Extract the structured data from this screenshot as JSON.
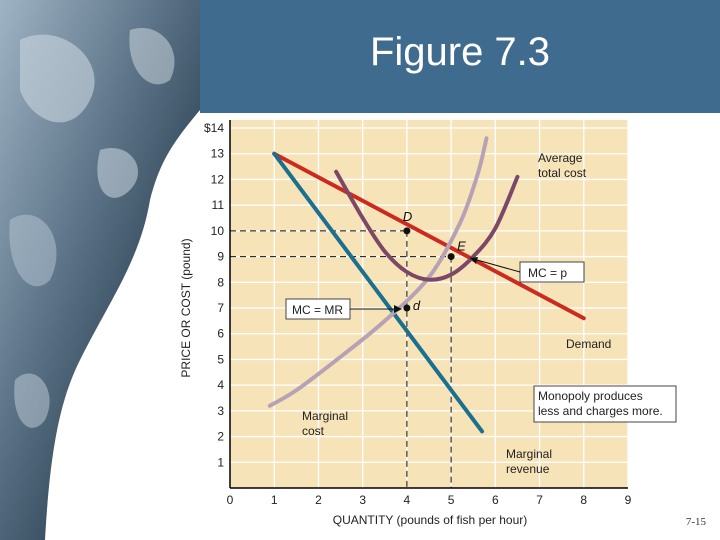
{
  "slide": {
    "title": "Figure 7.3",
    "page_number": "7-15"
  },
  "chart_data": {
    "type": "line",
    "title": "",
    "xlabel": "QUANTITY (pounds of fish per hour)",
    "ylabel": "PRICE OR COST (pound)",
    "xlim": [
      0,
      9
    ],
    "ylim": [
      0,
      14
    ],
    "x_ticks": [
      "0",
      "1",
      "2",
      "3",
      "4",
      "5",
      "6",
      "7",
      "8",
      "9"
    ],
    "y_ticks": [
      "",
      "1",
      "2",
      "3",
      "4",
      "5",
      "6",
      "7",
      "8",
      "9",
      "10",
      "11",
      "12",
      "13",
      "$14"
    ],
    "background": "#f7e3b8",
    "series": [
      {
        "name": "Demand",
        "color": "#cc2a1e",
        "x": [
          1,
          8
        ],
        "y": [
          13,
          6.6
        ]
      },
      {
        "name": "Marginal revenue",
        "color": "#1b6f8f",
        "x": [
          1,
          5.7
        ],
        "y": [
          13,
          2.2
        ]
      },
      {
        "name": "Marginal cost",
        "color": "#b7a2b5",
        "x": [
          0.9,
          1.5,
          2.5,
          3.5,
          4.5,
          5.2,
          5.6,
          5.8
        ],
        "y": [
          3.2,
          3.8,
          5.1,
          6.5,
          8.2,
          10.3,
          12.2,
          13.6
        ]
      },
      {
        "name": "Average total cost",
        "color": "#7d4766",
        "x": [
          2.4,
          3.0,
          3.5,
          4.0,
          4.5,
          5.0,
          5.5,
          6.0,
          6.5
        ],
        "y": [
          12.3,
          10.5,
          9.2,
          8.4,
          8.1,
          8.3,
          9.0,
          10.1,
          12.1
        ]
      }
    ],
    "points": [
      {
        "label": "D",
        "x": 4,
        "y": 10
      },
      {
        "label": "E",
        "x": 5,
        "y": 9
      },
      {
        "label": "d",
        "x": 4,
        "y": 7
      }
    ],
    "annotations": {
      "atc_line1": "Average",
      "atc_line2": "total cost",
      "demand": "Demand",
      "mr_line1": "Marginal",
      "mr_line2": "revenue",
      "mc_line1": "Marginal",
      "mc_line2": "cost",
      "mc_eq_p": "MC = p",
      "mc_eq_mr": "MC = MR",
      "monopoly_line1": "Monopoly produces",
      "monopoly_line2": "less and charges more."
    }
  }
}
